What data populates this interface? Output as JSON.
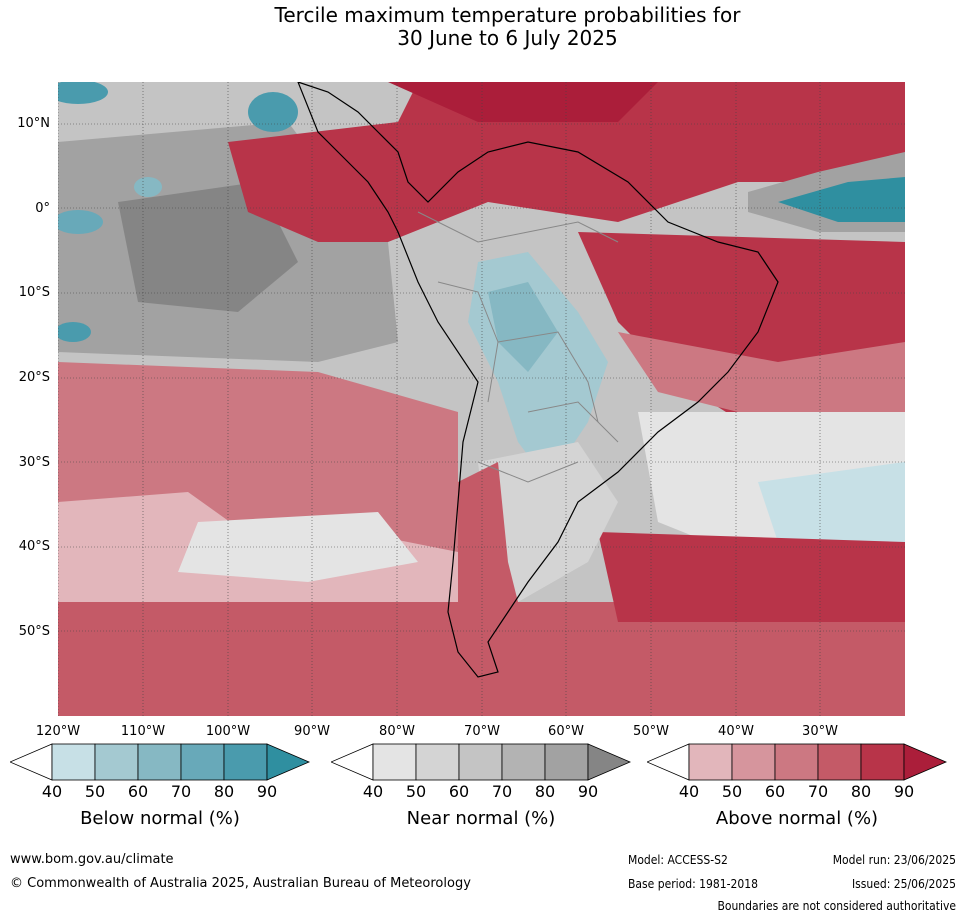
{
  "title_line1": "Tercile maximum temperature probabilities for",
  "title_line2": "30 June to 6 July 2025",
  "lat_labels": [
    "10°N",
    "0°",
    "10°S",
    "20°S",
    "30°S",
    "40°S",
    "50°S"
  ],
  "lon_labels": [
    "120°W",
    "110°W",
    "100°W",
    "90°W",
    "80°W",
    "70°W",
    "60°W",
    "50°W",
    "40°W",
    "30°W"
  ],
  "colorbars": [
    {
      "title": "Below normal (%)",
      "ticks": [
        "40",
        "50",
        "60",
        "70",
        "80",
        "90"
      ],
      "colors": [
        "#ffffff",
        "#c7e0e6",
        "#a4c9d1",
        "#86b8c3",
        "#68a9b9",
        "#4a9bad",
        "#2f8fa0"
      ]
    },
    {
      "title": "Near normal (%)",
      "ticks": [
        "40",
        "50",
        "60",
        "70",
        "80",
        "90"
      ],
      "colors": [
        "#ffffff",
        "#e4e4e4",
        "#d4d4d4",
        "#c4c4c4",
        "#b3b3b3",
        "#a2a2a2",
        "#858585"
      ]
    },
    {
      "title": "Above normal (%)",
      "ticks": [
        "40",
        "50",
        "60",
        "70",
        "80",
        "90"
      ],
      "colors": [
        "#ffffff",
        "#e2b6bb",
        "#d6959d",
        "#cc7882",
        "#c45a67",
        "#b83449",
        "#ab1e3a"
      ]
    }
  ],
  "footer": {
    "website": "www.bom.gov.au/climate",
    "copyright": "© Commonwealth of Australia 2025, Australian Bureau of Meteorology",
    "model": "Model: ACCESS-S2",
    "model_run": "Model run: 23/06/2025",
    "base_period": "Base period: 1981-2018",
    "issued": "Issued: 25/06/2025",
    "boundaries": "Boundaries are not considered authoritative"
  }
}
